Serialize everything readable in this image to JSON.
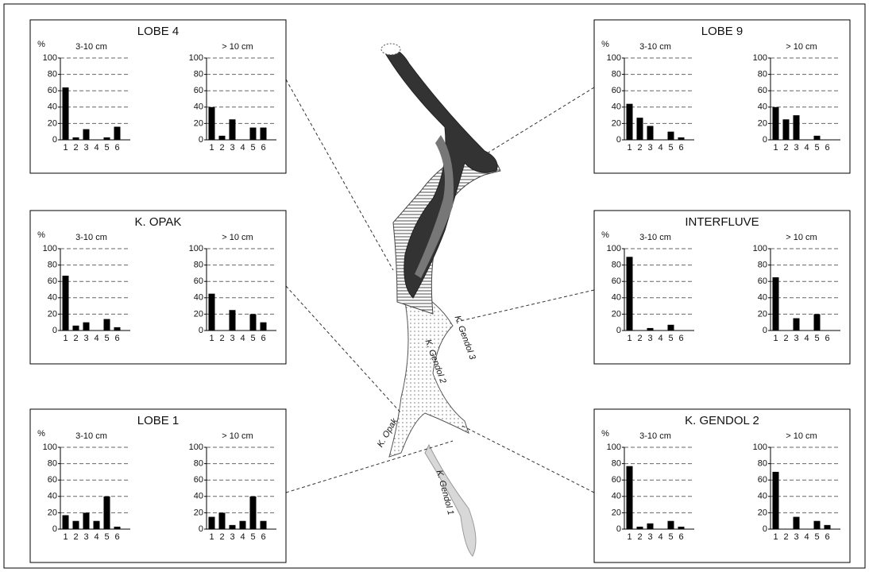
{
  "chart_data": [
    {
      "title": "LOBE 4",
      "y_label": "%",
      "charts": [
        {
          "type": "bar",
          "subtitle": "3-10 cm",
          "categories": [
            "1",
            "2",
            "3",
            "4",
            "5",
            "6"
          ],
          "values": [
            64,
            3,
            13,
            0,
            3,
            16
          ],
          "color": "#000000",
          "ylim": [
            0,
            100
          ],
          "yticks": [
            0,
            20,
            40,
            60,
            80,
            100
          ],
          "grid": true
        },
        {
          "type": "bar",
          "subtitle": "> 10 cm",
          "categories": [
            "1",
            "2",
            "3",
            "4",
            "5",
            "6"
          ],
          "values": [
            40,
            5,
            25,
            0,
            15,
            15
          ],
          "color": "#000000",
          "ylim": [
            0,
            100
          ],
          "yticks": [
            0,
            20,
            40,
            60,
            80,
            100
          ],
          "grid": true
        }
      ]
    },
    {
      "title": "K. OPAK",
      "y_label": "%",
      "charts": [
        {
          "type": "bar",
          "subtitle": "3-10 cm",
          "categories": [
            "1",
            "2",
            "3",
            "4",
            "5",
            "6"
          ],
          "values": [
            67,
            6,
            10,
            0,
            14,
            4
          ],
          "color": "#000000",
          "ylim": [
            0,
            100
          ],
          "yticks": [
            0,
            20,
            40,
            60,
            80,
            100
          ],
          "grid": true
        },
        {
          "type": "bar",
          "subtitle": "> 10 cm",
          "categories": [
            "1",
            "2",
            "3",
            "4",
            "5",
            "6"
          ],
          "values": [
            45,
            0,
            25,
            0,
            20,
            10
          ],
          "color": "#000000",
          "ylim": [
            0,
            100
          ],
          "yticks": [
            0,
            20,
            40,
            60,
            80,
            100
          ],
          "grid": true
        }
      ]
    },
    {
      "title": "LOBE 1",
      "y_label": "%",
      "charts": [
        {
          "type": "bar",
          "subtitle": "3-10 cm",
          "categories": [
            "1",
            "2",
            "3",
            "4",
            "5",
            "6"
          ],
          "values": [
            17,
            10,
            20,
            10,
            40,
            3
          ],
          "color": "#000000",
          "ylim": [
            0,
            100
          ],
          "yticks": [
            0,
            20,
            40,
            60,
            80,
            100
          ],
          "grid": true
        },
        {
          "type": "bar",
          "subtitle": "> 10 cm",
          "categories": [
            "1",
            "2",
            "3",
            "4",
            "5",
            "6"
          ],
          "values": [
            15,
            20,
            5,
            10,
            40,
            10
          ],
          "color": "#000000",
          "ylim": [
            0,
            100
          ],
          "yticks": [
            0,
            20,
            40,
            60,
            80,
            100
          ],
          "grid": true
        }
      ]
    },
    {
      "title": "LOBE 9",
      "y_label": "%",
      "charts": [
        {
          "type": "bar",
          "subtitle": "3-10 cm",
          "categories": [
            "1",
            "2",
            "3",
            "4",
            "5",
            "6"
          ],
          "values": [
            44,
            27,
            17,
            0,
            10,
            3
          ],
          "color": "#000000",
          "ylim": [
            0,
            100
          ],
          "yticks": [
            0,
            20,
            40,
            60,
            80,
            100
          ],
          "grid": true
        },
        {
          "type": "bar",
          "subtitle": "> 10 cm",
          "categories": [
            "1",
            "2",
            "3",
            "4",
            "5",
            "6"
          ],
          "values": [
            40,
            25,
            30,
            0,
            5,
            0
          ],
          "color": "#000000",
          "ylim": [
            0,
            100
          ],
          "yticks": [
            0,
            20,
            40,
            60,
            80,
            100
          ],
          "grid": true
        }
      ]
    },
    {
      "title": "INTERFLUVE",
      "y_label": "%",
      "charts": [
        {
          "type": "bar",
          "subtitle": "3-10 cm",
          "categories": [
            "1",
            "2",
            "3",
            "4",
            "5",
            "6"
          ],
          "values": [
            90,
            0,
            3,
            0,
            7,
            0
          ],
          "color": "#000000",
          "ylim": [
            0,
            100
          ],
          "yticks": [
            0,
            20,
            40,
            60,
            80,
            100
          ],
          "grid": true
        },
        {
          "type": "bar",
          "subtitle": "> 10 cm",
          "categories": [
            "1",
            "2",
            "3",
            "4",
            "5",
            "6"
          ],
          "values": [
            65,
            0,
            15,
            0,
            20,
            0
          ],
          "color": "#000000",
          "ylim": [
            0,
            100
          ],
          "yticks": [
            0,
            20,
            40,
            60,
            80,
            100
          ],
          "grid": true
        }
      ]
    },
    {
      "title": "K. GENDOL 2",
      "y_label": "%",
      "charts": [
        {
          "type": "bar",
          "subtitle": "3-10 cm",
          "categories": [
            "1",
            "2",
            "3",
            "4",
            "5",
            "6"
          ],
          "values": [
            77,
            3,
            7,
            0,
            10,
            3
          ],
          "color": "#000000",
          "ylim": [
            0,
            100
          ],
          "yticks": [
            0,
            20,
            40,
            60,
            80,
            100
          ],
          "grid": true
        },
        {
          "type": "bar",
          "subtitle": "> 10 cm",
          "categories": [
            "1",
            "2",
            "3",
            "4",
            "5",
            "6"
          ],
          "values": [
            70,
            0,
            15,
            0,
            10,
            5
          ],
          "color": "#000000",
          "ylim": [
            0,
            100
          ],
          "yticks": [
            0,
            20,
            40,
            60,
            80,
            100
          ],
          "grid": true
        }
      ]
    }
  ],
  "map_labels": [
    "K. Gendol 3",
    "K. Gendol 2",
    "K. Opak",
    "K. Gendol 1"
  ]
}
